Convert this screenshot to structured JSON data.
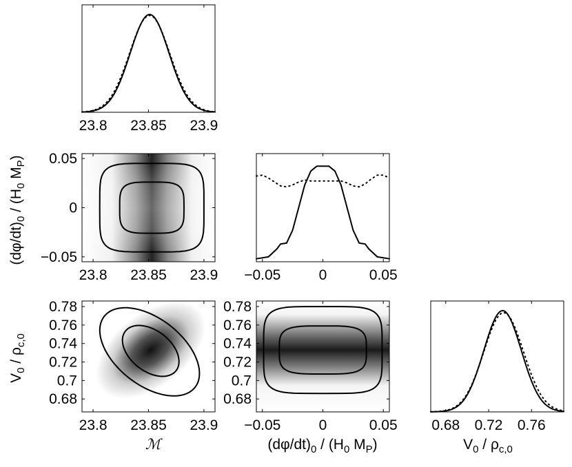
{
  "chart_data": {
    "type": "corner",
    "parameters": [
      "M",
      "(dφ/dt)0 / (H0 MP)",
      "V0 / ρc,0"
    ],
    "axis_labels": {
      "m": "ℳ",
      "dphi_base": "(dφ/dt)",
      "dphi_sub": "0",
      "dphi_mid": " / (H",
      "dphi_sub2": "0",
      "dphi_mid2": " M",
      "dphi_sub3": "P",
      "dphi_end": ")",
      "v_base": "V",
      "v_sub": "0",
      "v_mid": " / ρ",
      "v_sub2": "c,0"
    },
    "panels": [
      {
        "id": "m-marginal",
        "type": "line",
        "xlim": [
          23.79,
          23.91
        ],
        "xticks": [
          23.8,
          23.85,
          23.9
        ],
        "xtick_labels": [
          "23.8",
          "23.85",
          "23.9"
        ],
        "series": [
          {
            "style": "solid",
            "shape": "gaussian",
            "mean": 23.851,
            "sigma": 0.0175,
            "peak": 1.0
          },
          {
            "style": "dotted",
            "shape": "gaussian",
            "mean": 23.851,
            "sigma": 0.0182,
            "peak": 0.99
          }
        ]
      },
      {
        "id": "dphi-vs-m",
        "type": "heatmap",
        "xlim": [
          23.79,
          23.91
        ],
        "ylim": [
          -0.055,
          0.055
        ],
        "xticks": [
          23.8,
          23.85,
          23.9
        ],
        "xtick_labels": [
          "23.8",
          "23.85",
          "23.9"
        ],
        "yticks": [
          -0.05,
          0,
          0.05
        ],
        "ytick_labels": [
          "−0.05",
          "0",
          "0.05"
        ],
        "density_peak_x": 23.853,
        "contours": [
          {
            "level": "68%",
            "cx": 23.853,
            "cy": 0.0,
            "rx": 0.029,
            "ry": 0.026,
            "squareness": 4
          },
          {
            "level": "95%",
            "cx": 23.853,
            "cy": 0.0,
            "rx": 0.047,
            "ry": 0.045,
            "squareness": 5
          }
        ]
      },
      {
        "id": "dphi-marginal",
        "type": "line",
        "xlim": [
          -0.055,
          0.055
        ],
        "xticks": [
          -0.05,
          0,
          0.05
        ],
        "xtick_labels": [
          "−0.05",
          "0",
          "0.05"
        ],
        "series": [
          {
            "style": "solid",
            "x": [
              -0.055,
              -0.045,
              -0.038,
              -0.035,
              -0.03,
              -0.025,
              -0.02,
              -0.015,
              -0.01,
              -0.005,
              0.0,
              0.005,
              0.01,
              0.015,
              0.02,
              0.025,
              0.03,
              0.035,
              0.038,
              0.045,
              0.055
            ],
            "y": [
              0.03,
              0.05,
              0.13,
              0.18,
              0.19,
              0.32,
              0.55,
              0.78,
              0.92,
              0.97,
              0.97,
              0.97,
              0.92,
              0.78,
              0.55,
              0.32,
              0.19,
              0.18,
              0.13,
              0.05,
              0.03
            ]
          },
          {
            "style": "dotted",
            "x": [
              -0.055,
              -0.05,
              -0.045,
              -0.04,
              -0.035,
              -0.03,
              -0.025,
              -0.02,
              -0.015,
              -0.01,
              0.0,
              0.01,
              0.015,
              0.02,
              0.025,
              0.03,
              0.035,
              0.04,
              0.045,
              0.05,
              0.055
            ],
            "y": [
              0.87,
              0.88,
              0.85,
              0.81,
              0.77,
              0.76,
              0.78,
              0.81,
              0.83,
              0.82,
              0.82,
              0.82,
              0.82,
              0.8,
              0.77,
              0.76,
              0.79,
              0.84,
              0.88,
              0.88,
              0.85
            ]
          }
        ]
      },
      {
        "id": "v-vs-m",
        "type": "heatmap",
        "xlim": [
          23.79,
          23.91
        ],
        "ylim": [
          0.666,
          0.786
        ],
        "xticks": [
          23.8,
          23.85,
          23.9
        ],
        "xtick_labels": [
          "23.8",
          "23.85",
          "23.9"
        ],
        "yticks": [
          0.68,
          0.7,
          0.72,
          0.74,
          0.76,
          0.78
        ],
        "ytick_labels": [
          "0.68",
          "0.7",
          "0.72",
          "0.74",
          "0.76",
          "0.78"
        ],
        "density_peak": [
          23.852,
          0.733
        ],
        "contours": [
          {
            "level": "68%",
            "cx": 23.852,
            "cy": 0.732,
            "semi_major": 0.029,
            "semi_minor": 0.022,
            "angle_deg": -38
          },
          {
            "level": "95%",
            "cx": 23.851,
            "cy": 0.731,
            "semi_major": 0.052,
            "semi_minor": 0.036,
            "angle_deg": -38
          }
        ]
      },
      {
        "id": "v-vs-dphi",
        "type": "heatmap",
        "xlim": [
          -0.055,
          0.055
        ],
        "ylim": [
          0.666,
          0.786
        ],
        "xticks": [
          -0.05,
          0,
          0.05
        ],
        "xtick_labels": [
          "−0.05",
          "0",
          "0.05"
        ],
        "yticks": [
          0.68,
          0.7,
          0.72,
          0.74,
          0.76,
          0.78
        ],
        "ytick_labels": [
          "0.68",
          "0.7",
          "0.72",
          "0.74",
          "0.76",
          "0.78"
        ],
        "density_peak_y": 0.733,
        "contours": [
          {
            "level": "68%",
            "cx": 0.0,
            "cy": 0.733,
            "rx": 0.036,
            "ry": 0.026,
            "squareness": 4
          },
          {
            "level": "95%",
            "cx": 0.0,
            "cy": 0.733,
            "rx": 0.049,
            "ry": 0.047,
            "squareness": 5
          }
        ]
      },
      {
        "id": "v-marginal",
        "type": "line",
        "xlim": [
          0.666,
          0.79
        ],
        "xticks": [
          0.68,
          0.72,
          0.76
        ],
        "xtick_labels": [
          "0.68",
          "0.72",
          "0.76"
        ],
        "series": [
          {
            "style": "solid",
            "shape": "gaussian",
            "mean": 0.733,
            "sigma": 0.0175,
            "peak": 1.0
          },
          {
            "style": "dotted",
            "shape": "gaussian",
            "mean": 0.734,
            "sigma": 0.0185,
            "peak": 0.98
          }
        ]
      }
    ]
  }
}
